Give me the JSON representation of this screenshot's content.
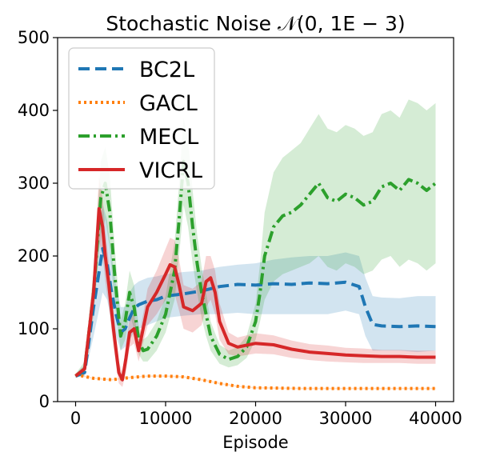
{
  "chart_data": {
    "type": "line",
    "title": "Stochastic Noise 𝒩(0, 1E − 3)",
    "xlabel": "Episode",
    "ylabel": "",
    "xlim": [
      -2000,
      42000
    ],
    "ylim": [
      0,
      500
    ],
    "xticks": [
      0,
      10000,
      20000,
      30000,
      40000
    ],
    "yticks": [
      0,
      100,
      200,
      300,
      400,
      500
    ],
    "grid": false,
    "legend_position": "top-left",
    "series": [
      {
        "name": "BC2L",
        "color": "#1f77b4",
        "style": "dashed",
        "x": [
          0,
          1000,
          2000,
          3000,
          3500,
          4000,
          4500,
          5000,
          5500,
          6000,
          6500,
          7000,
          8000,
          9000,
          10000,
          12000,
          14000,
          16000,
          18000,
          20000,
          22000,
          24000,
          26000,
          28000,
          30000,
          31500,
          32200,
          33000,
          34000,
          36000,
          38000,
          40000
        ],
        "y": [
          35,
          40,
          130,
          210,
          190,
          150,
          120,
          95,
          100,
          115,
          128,
          133,
          138,
          140,
          145,
          148,
          152,
          158,
          161,
          160,
          162,
          161,
          163,
          162,
          164,
          158,
          130,
          106,
          104,
          103,
          104,
          103
        ],
        "band_lower": [
          33,
          35,
          90,
          150,
          140,
          110,
          90,
          70,
          75,
          85,
          95,
          100,
          105,
          110,
          115,
          118,
          120,
          120,
          122,
          120,
          120,
          120,
          120,
          120,
          125,
          120,
          90,
          70,
          70,
          70,
          68,
          70
        ],
        "band_upper": [
          38,
          50,
          170,
          270,
          250,
          200,
          160,
          130,
          130,
          150,
          160,
          165,
          170,
          172,
          175,
          178,
          180,
          185,
          188,
          190,
          195,
          198,
          200,
          200,
          205,
          200,
          170,
          145,
          143,
          142,
          145,
          145
        ]
      },
      {
        "name": "GACL",
        "color": "#ff7f0e",
        "style": "dotted",
        "x": [
          0,
          2000,
          4000,
          6000,
          8000,
          10000,
          12000,
          14000,
          16000,
          18000,
          20000,
          25000,
          30000,
          35000,
          40000
        ],
        "y": [
          37,
          32,
          30,
          33,
          35,
          35,
          34,
          30,
          25,
          21,
          19,
          18,
          18,
          18,
          18
        ],
        "band_lower": [
          36,
          31,
          29,
          32,
          34,
          34,
          33,
          29,
          24,
          20,
          18,
          17,
          17,
          17,
          17
        ],
        "band_upper": [
          38,
          33,
          31,
          34,
          36,
          36,
          35,
          31,
          26,
          22,
          20,
          19,
          19,
          19,
          19
        ]
      },
      {
        "name": "MECL",
        "color": "#2ca02c",
        "style": "dashdot",
        "x": [
          0,
          1000,
          2000,
          2800,
          3300,
          3800,
          4300,
          5000,
          5500,
          6000,
          6500,
          7000,
          7500,
          8000,
          9000,
          10000,
          11000,
          11500,
          12000,
          12500,
          13000,
          13500,
          14000,
          14500,
          15000,
          16000,
          17000,
          18000,
          19000,
          20000,
          20500,
          21000,
          22000,
          23000,
          24000,
          25000,
          26000,
          27000,
          28000,
          29000,
          30000,
          31000,
          32000,
          33000,
          34000,
          35000,
          36000,
          37000,
          38000,
          39000,
          40000
        ],
        "y": [
          35,
          45,
          150,
          280,
          300,
          260,
          180,
          90,
          110,
          150,
          130,
          85,
          70,
          72,
          90,
          120,
          180,
          250,
          330,
          300,
          240,
          190,
          150,
          120,
          90,
          65,
          58,
          62,
          75,
          110,
          150,
          200,
          240,
          255,
          260,
          270,
          285,
          300,
          280,
          275,
          285,
          280,
          270,
          275,
          295,
          300,
          290,
          305,
          300,
          290,
          300
        ],
        "band_lower": [
          33,
          40,
          120,
          230,
          250,
          210,
          140,
          70,
          85,
          120,
          100,
          65,
          55,
          55,
          70,
          95,
          140,
          200,
          270,
          240,
          190,
          150,
          115,
          90,
          70,
          52,
          47,
          50,
          60,
          85,
          110,
          140,
          165,
          175,
          180,
          185,
          190,
          200,
          185,
          180,
          190,
          185,
          175,
          180,
          195,
          200,
          185,
          195,
          190,
          180,
          190
        ],
        "band_upper": [
          38,
          55,
          180,
          330,
          350,
          310,
          220,
          110,
          135,
          180,
          160,
          105,
          85,
          90,
          110,
          145,
          220,
          300,
          390,
          360,
          290,
          230,
          185,
          150,
          110,
          78,
          70,
          75,
          90,
          135,
          190,
          260,
          315,
          335,
          345,
          355,
          375,
          395,
          375,
          370,
          380,
          375,
          365,
          370,
          395,
          400,
          390,
          415,
          410,
          400,
          410
        ]
      },
      {
        "name": "VICRL",
        "color": "#d62728",
        "style": "solid",
        "x": [
          0,
          1000,
          2000,
          2600,
          3000,
          3300,
          3700,
          4200,
          4800,
          5200,
          5600,
          6000,
          6500,
          7000,
          7500,
          8000,
          9000,
          10000,
          10500,
          11000,
          11500,
          12000,
          13000,
          14000,
          14500,
          15000,
          15500,
          16000,
          17000,
          18000,
          20000,
          22000,
          24000,
          26000,
          28000,
          30000,
          32000,
          34000,
          36000,
          38000,
          40000
        ],
        "y": [
          35,
          45,
          150,
          265,
          240,
          200,
          160,
          100,
          40,
          30,
          60,
          95,
          100,
          70,
          100,
          130,
          150,
          175,
          188,
          185,
          160,
          130,
          125,
          135,
          165,
          170,
          150,
          110,
          80,
          75,
          80,
          78,
          72,
          68,
          66,
          64,
          63,
          62,
          62,
          61,
          61
        ],
        "band_lower": [
          33,
          40,
          120,
          220,
          200,
          165,
          130,
          75,
          25,
          20,
          40,
          75,
          80,
          55,
          80,
          105,
          120,
          140,
          150,
          148,
          125,
          100,
          95,
          105,
          130,
          140,
          120,
          85,
          65,
          62,
          66,
          65,
          60,
          57,
          55,
          54,
          53,
          53,
          53,
          52,
          52
        ],
        "band_upper": [
          38,
          50,
          180,
          310,
          280,
          235,
          190,
          125,
          55,
          40,
          80,
          115,
          120,
          85,
          120,
          155,
          180,
          210,
          225,
          222,
          195,
          160,
          155,
          165,
          200,
          200,
          180,
          135,
          95,
          88,
          94,
          91,
          84,
          79,
          77,
          74,
          73,
          71,
          71,
          70,
          70
        ]
      }
    ]
  }
}
